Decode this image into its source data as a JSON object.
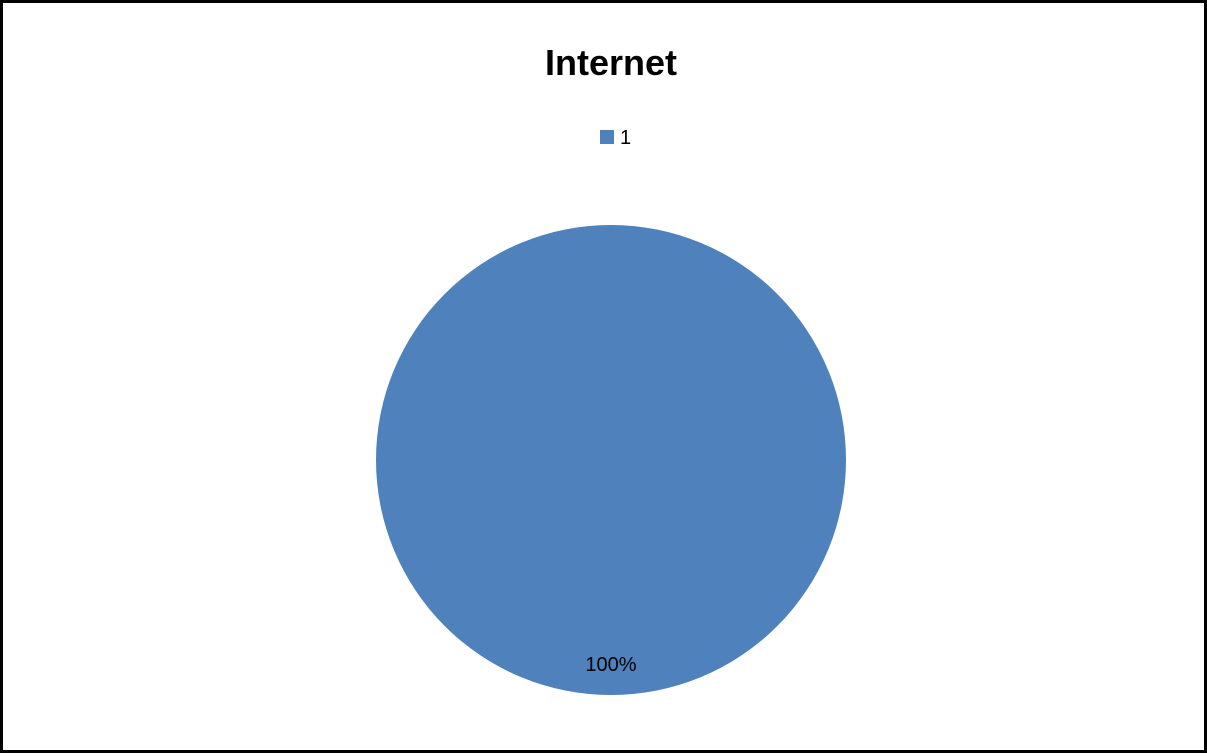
{
  "chart_data": {
    "type": "pie",
    "title": "Internet",
    "categories": [
      "1"
    ],
    "values": [
      100
    ],
    "data_labels": [
      "100%"
    ],
    "colors": [
      "#4F81BD"
    ],
    "legend": {
      "placement": "top",
      "entries": [
        "1"
      ]
    }
  }
}
